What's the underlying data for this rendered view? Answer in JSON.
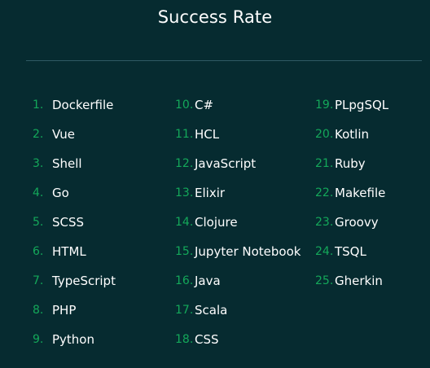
{
  "title": "Success Rate",
  "accent_color": "#14a85a",
  "background_color": "#062b30",
  "columns": [
    {
      "items": [
        {
          "num": "1.",
          "label": "Dockerfile"
        },
        {
          "num": "2.",
          "label": "Vue"
        },
        {
          "num": "3.",
          "label": "Shell"
        },
        {
          "num": "4.",
          "label": "Go"
        },
        {
          "num": "5.",
          "label": "SCSS"
        },
        {
          "num": "6.",
          "label": "HTML"
        },
        {
          "num": "7.",
          "label": "TypeScript"
        },
        {
          "num": "8.",
          "label": "PHP"
        },
        {
          "num": "9.",
          "label": "Python"
        }
      ]
    },
    {
      "items": [
        {
          "num": "10.",
          "label": "C#"
        },
        {
          "num": "11.",
          "label": "HCL"
        },
        {
          "num": "12.",
          "label": "JavaScript"
        },
        {
          "num": "13.",
          "label": "Elixir"
        },
        {
          "num": "14.",
          "label": "Clojure"
        },
        {
          "num": "15.",
          "label": "Jupyter Notebook"
        },
        {
          "num": "16.",
          "label": "Java"
        },
        {
          "num": "17.",
          "label": "Scala"
        },
        {
          "num": "18.",
          "label": "CSS"
        }
      ]
    },
    {
      "items": [
        {
          "num": "19.",
          "label": "PLpgSQL"
        },
        {
          "num": "20.",
          "label": "Kotlin"
        },
        {
          "num": "21.",
          "label": "Ruby"
        },
        {
          "num": "22.",
          "label": "Makefile"
        },
        {
          "num": "23.",
          "label": "Groovy"
        },
        {
          "num": "24.",
          "label": "TSQL"
        },
        {
          "num": "25.",
          "label": "Gherkin"
        }
      ]
    }
  ]
}
